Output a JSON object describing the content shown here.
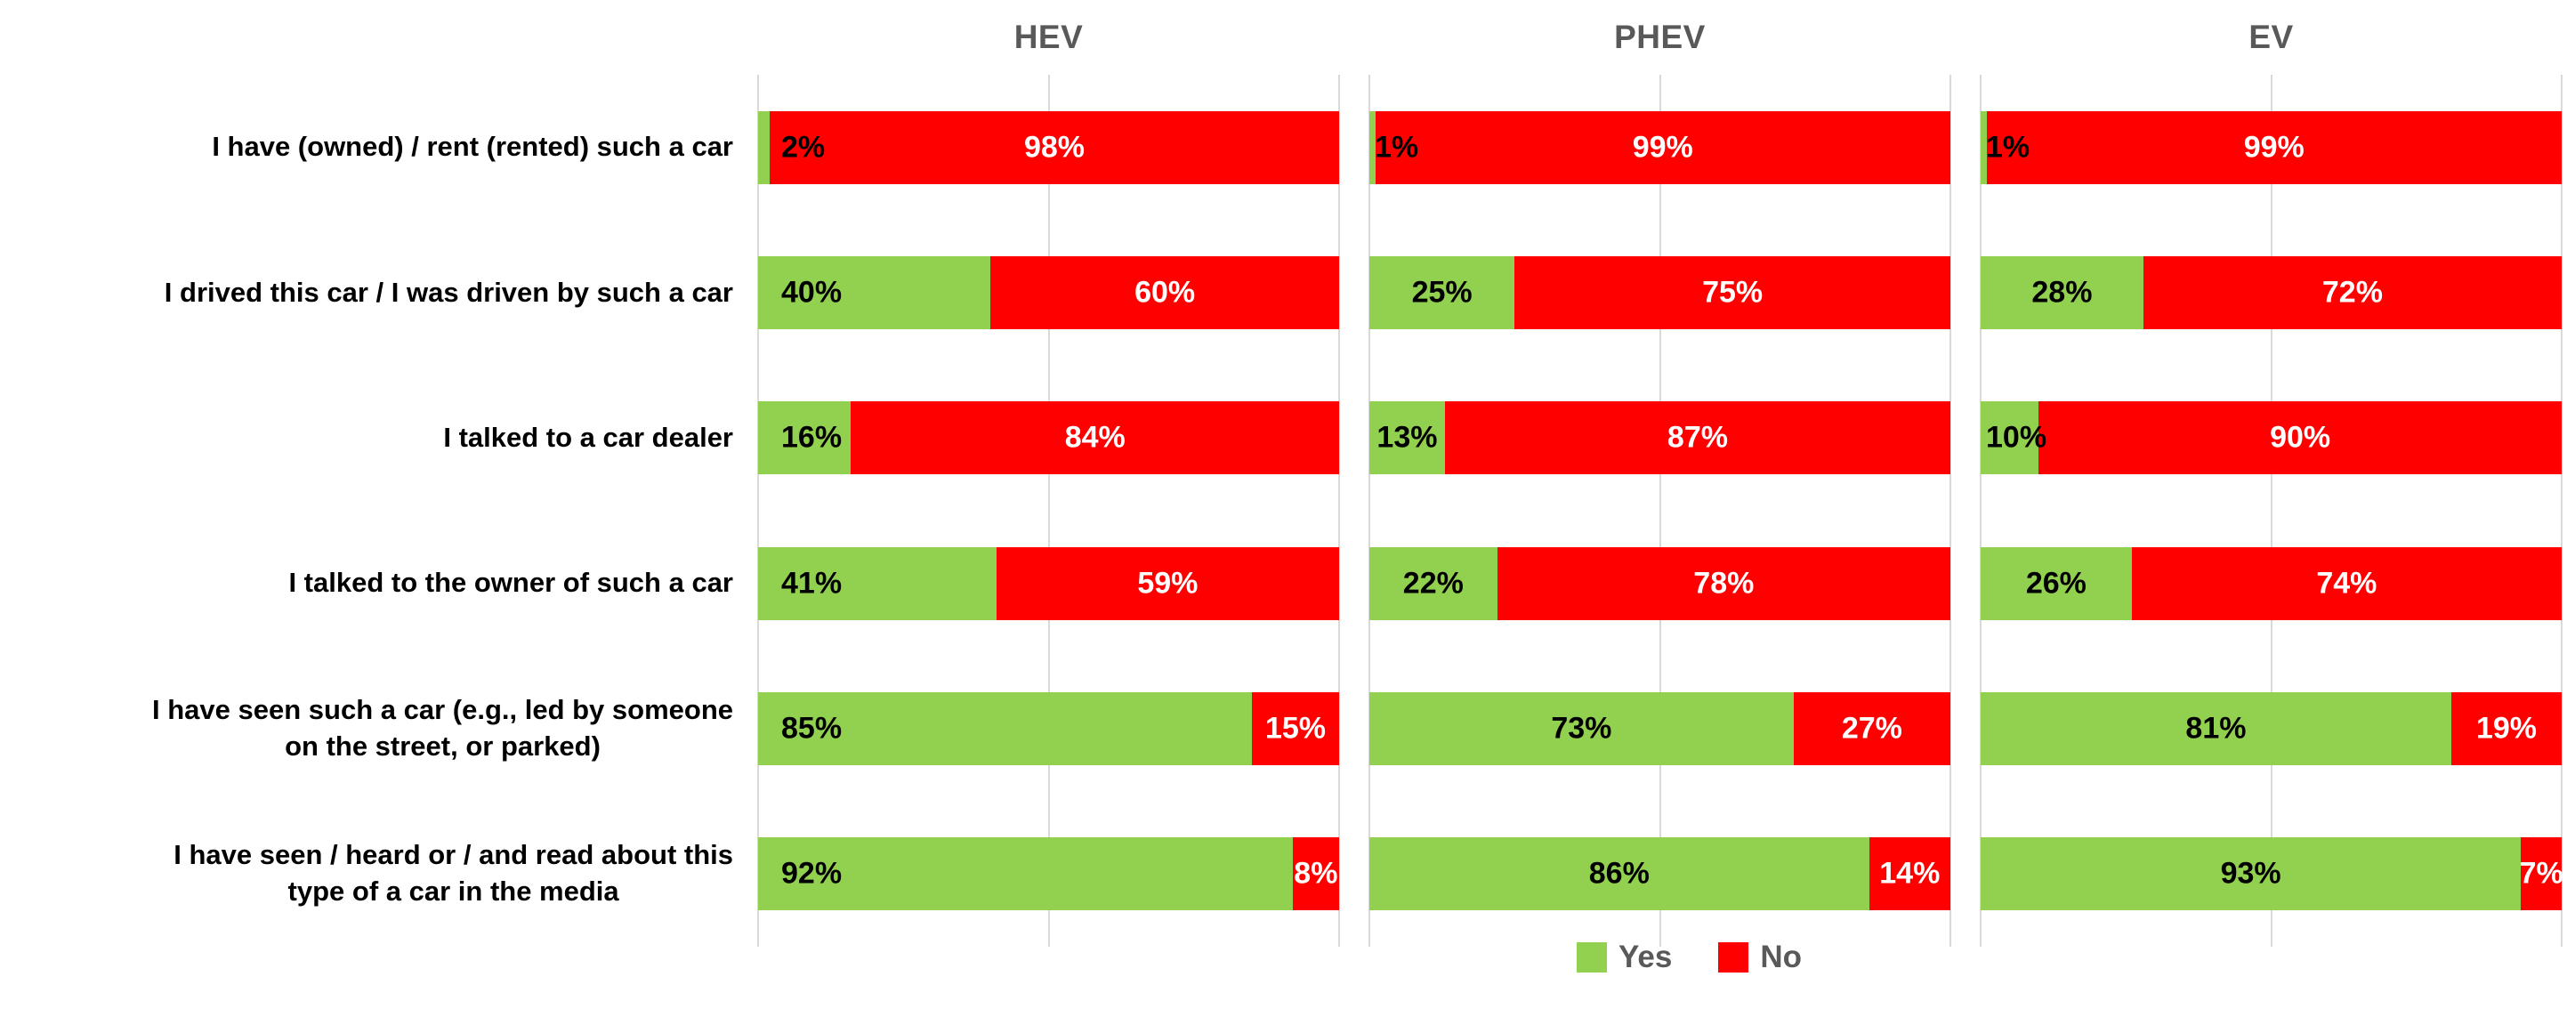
{
  "chart_data": {
    "type": "bar",
    "orientation": "horizontal",
    "stacked": true,
    "unit": "%",
    "xlim": [
      0,
      100
    ],
    "gridlines_x": [
      0,
      50,
      100
    ],
    "grid": true,
    "legend_position": "bottom-right",
    "categories": [
      "I have (owned) / rent (rented) such a car",
      "I drived this car / I was driven by such a car",
      "I talked to a car dealer",
      "I talked to the owner of such a car",
      "I have seen such a car (e.g., led by someone\non the street, or parked)",
      "I have seen / heard or / and read about this\ntype of a car in the media"
    ],
    "panels": [
      {
        "title": "HEV",
        "green_label_align": "left",
        "rows": [
          {
            "yes": 2,
            "no": 98
          },
          {
            "yes": 40,
            "no": 60
          },
          {
            "yes": 16,
            "no": 84
          },
          {
            "yes": 41,
            "no": 59
          },
          {
            "yes": 85,
            "no": 15
          },
          {
            "yes": 92,
            "no": 8
          }
        ]
      },
      {
        "title": "PHEV",
        "green_label_align": "center",
        "rows": [
          {
            "yes": 1,
            "no": 99
          },
          {
            "yes": 25,
            "no": 75
          },
          {
            "yes": 13,
            "no": 87
          },
          {
            "yes": 22,
            "no": 78
          },
          {
            "yes": 73,
            "no": 27
          },
          {
            "yes": 86,
            "no": 14
          }
        ]
      },
      {
        "title": "EV",
        "green_label_align": "center",
        "rows": [
          {
            "yes": 1,
            "no": 99
          },
          {
            "yes": 28,
            "no": 72
          },
          {
            "yes": 10,
            "no": 90
          },
          {
            "yes": 26,
            "no": 74
          },
          {
            "yes": 81,
            "no": 19
          },
          {
            "yes": 93,
            "no": 7
          }
        ]
      }
    ],
    "legend": [
      {
        "label": "Yes",
        "color": "#92D050"
      },
      {
        "label": "No",
        "color": "#FF0000"
      }
    ],
    "colors": {
      "yes_fill": "#92D050",
      "no_fill": "#FF0000",
      "gridline": "#D9D9D9",
      "panel_title_text": "#595959",
      "category_text": "#000000",
      "yes_value_text": "#000000",
      "no_value_text": "#FFFFFF",
      "legend_text": "#595959",
      "background": "#FFFFFF"
    }
  }
}
